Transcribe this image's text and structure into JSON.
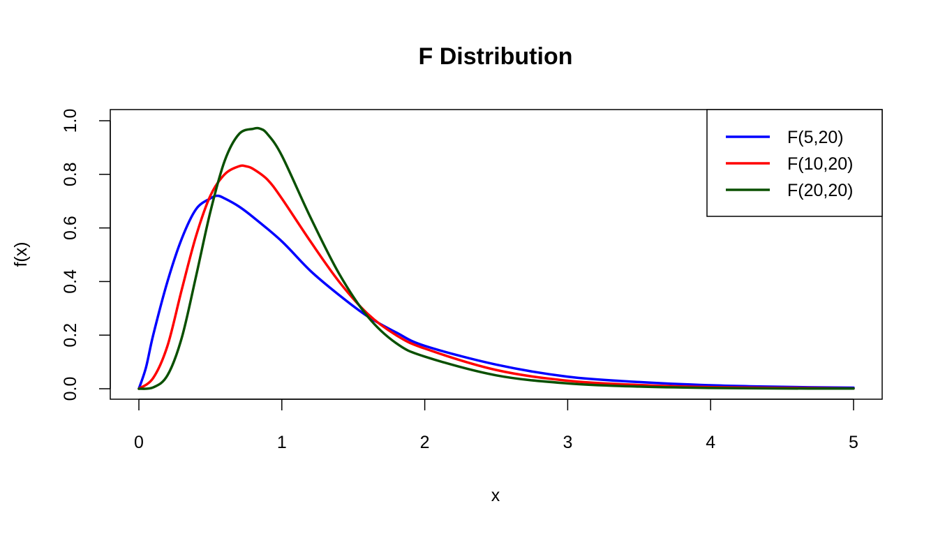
{
  "chart_data": {
    "type": "line",
    "title": "F Distribution",
    "xlabel": "x",
    "ylabel": "f(x)",
    "xlim": [
      0,
      5
    ],
    "ylim": [
      0,
      1.0
    ],
    "x_ticks": [
      0,
      1,
      2,
      3,
      4,
      5
    ],
    "y_ticks": [
      "0.0",
      "0.2",
      "0.4",
      "0.6",
      "0.8",
      "1.0"
    ],
    "grid": false,
    "legend_position": "top-right",
    "series": [
      {
        "name": "F(5,20)",
        "color": "#0000ff",
        "x": [
          0,
          0.05,
          0.1,
          0.2,
          0.3,
          0.4,
          0.5,
          0.55,
          0.6,
          0.7,
          0.8,
          1.0,
          1.2,
          1.4,
          1.6,
          1.8,
          2.0,
          2.5,
          3.0,
          3.5,
          4.0,
          4.5,
          5.0
        ],
        "y": [
          0,
          0.08,
          0.2,
          0.4,
          0.56,
          0.67,
          0.71,
          0.72,
          0.71,
          0.68,
          0.64,
          0.55,
          0.44,
          0.35,
          0.27,
          0.21,
          0.16,
          0.09,
          0.045,
          0.025,
          0.013,
          0.007,
          0.004
        ]
      },
      {
        "name": "F(10,20)",
        "color": "#ff0000",
        "x": [
          0,
          0.1,
          0.2,
          0.3,
          0.4,
          0.5,
          0.6,
          0.7,
          0.75,
          0.8,
          0.9,
          1.0,
          1.2,
          1.4,
          1.6,
          1.8,
          2.0,
          2.5,
          3.0,
          3.5,
          4.0,
          4.5,
          5.0
        ],
        "y": [
          0,
          0.04,
          0.16,
          0.37,
          0.57,
          0.72,
          0.8,
          0.83,
          0.83,
          0.82,
          0.78,
          0.71,
          0.55,
          0.4,
          0.28,
          0.2,
          0.15,
          0.07,
          0.03,
          0.014,
          0.006,
          0.003,
          0.001
        ]
      },
      {
        "name": "F(20,20)",
        "color": "#0a5000",
        "x": [
          0,
          0.1,
          0.2,
          0.3,
          0.4,
          0.5,
          0.6,
          0.7,
          0.8,
          0.85,
          0.9,
          1.0,
          1.2,
          1.4,
          1.6,
          1.8,
          2.0,
          2.5,
          3.0,
          3.5,
          4.0,
          4.5,
          5.0
        ],
        "y": [
          0,
          0.005,
          0.05,
          0.19,
          0.42,
          0.66,
          0.85,
          0.95,
          0.97,
          0.97,
          0.95,
          0.87,
          0.64,
          0.43,
          0.27,
          0.17,
          0.12,
          0.05,
          0.02,
          0.008,
          0.003,
          0.001,
          0.0005
        ]
      }
    ]
  }
}
